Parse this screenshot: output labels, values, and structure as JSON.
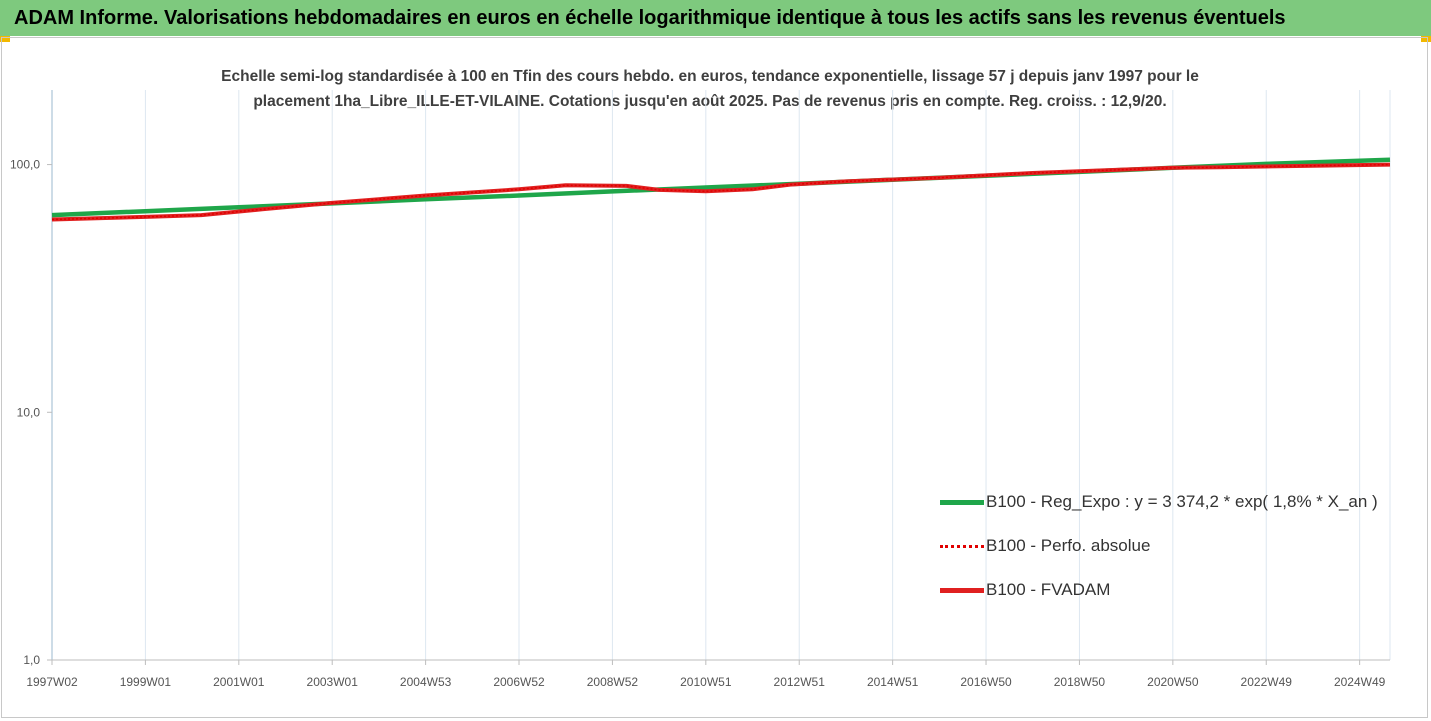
{
  "header": {
    "title": "ADAM Informe. Valorisations hebdomadaires en euros en échelle logarithmique identique à tous les actifs sans les revenus éventuels"
  },
  "colors": {
    "header_bg": "#7ec97e",
    "corner_marks": "#f2b800",
    "reg_expo": "#1fa64a",
    "perfo_absolue": "#e00000",
    "fvadam": "#e02020",
    "grid": "#dde7f0"
  },
  "chart_data": {
    "type": "line",
    "subtitle_line1": "Echelle semi-log standardisée à 100 en Tfin des cours hebdo. en euros, tendance exponentielle, lissage 57 j depuis janv 1997 pour le",
    "subtitle_line2": "placement 1ha_Libre_ILLE-ET-VILAINE.  Cotations jusqu'en août 2025.  Pas de revenus pris en compte. Reg. croiss. : 12,9/20.",
    "y_scale": "log",
    "ylim": [
      1,
      200
    ],
    "y_ticks": [
      1,
      10,
      100
    ],
    "y_tick_labels": [
      "1,0",
      "10,0",
      "100,0"
    ],
    "xlim": [
      1997.0,
      2025.65
    ],
    "x_tick_positions": [
      1997.0,
      1999.0,
      2001.0,
      2003.0,
      2005.0,
      2007.0,
      2009.0,
      2011.0,
      2013.0,
      2015.0,
      2017.0,
      2019.0,
      2021.0,
      2023.0,
      2025.0
    ],
    "x_tick_labels": [
      "1997W02",
      "1999W01",
      "2001W01",
      "2003W01",
      "2004W53",
      "2006W52",
      "2008W52",
      "2010W51",
      "2012W51",
      "2014W51",
      "2016W50",
      "2018W50",
      "2020W50",
      "2022W49",
      "2024W49"
    ],
    "grid": "vertical",
    "legend_position": "bottom-right",
    "series": [
      {
        "name": "B100 - Reg_Expo : y = 3 374,2 * exp( 1,8% *  X_an )",
        "style": "solid-thick",
        "x": [
          1997.0,
          1999.0,
          2001.0,
          2003.0,
          2005.0,
          2007.0,
          2009.0,
          2011.0,
          2013.0,
          2015.0,
          2017.0,
          2019.0,
          2021.0,
          2023.0,
          2025.65
        ],
        "values": [
          62.5,
          64.8,
          67.2,
          69.7,
          72.4,
          75.0,
          77.9,
          80.8,
          83.7,
          86.9,
          90.1,
          93.4,
          97.0,
          100.6,
          104.5
        ]
      },
      {
        "name": "B100 - Perfo. absolue",
        "style": "dotted",
        "x": [
          1997.0,
          1999.0,
          2000.2,
          2001.5,
          2003.0,
          2005.0,
          2007.0,
          2008.0,
          2009.3,
          2010.0,
          2011.0,
          2012.0,
          2012.8,
          2014.0,
          2016.0,
          2018.0,
          2020.0,
          2021.0,
          2022.0,
          2024.0,
          2025.65
        ],
        "values": [
          60.0,
          61.5,
          62.5,
          66.0,
          70.0,
          75.0,
          79.5,
          82.5,
          82.0,
          79.0,
          78.0,
          79.5,
          83.0,
          85.5,
          88.5,
          92.5,
          95.5,
          97.0,
          97.5,
          99.0,
          100.0
        ]
      },
      {
        "name": "B100 - FVADAM",
        "style": "solid-thick",
        "x": [
          1997.0,
          1999.0,
          2000.2,
          2001.5,
          2003.0,
          2005.0,
          2007.0,
          2008.0,
          2009.3,
          2010.0,
          2011.0,
          2012.0,
          2012.8,
          2014.0,
          2016.0,
          2018.0,
          2020.0,
          2021.0,
          2022.0,
          2024.0,
          2025.65
        ],
        "values": [
          60.0,
          61.5,
          62.5,
          66.0,
          70.0,
          75.0,
          79.5,
          82.5,
          82.0,
          79.0,
          78.0,
          79.5,
          83.0,
          85.5,
          88.5,
          92.5,
          95.5,
          97.0,
          97.5,
          99.0,
          100.0
        ]
      }
    ]
  }
}
